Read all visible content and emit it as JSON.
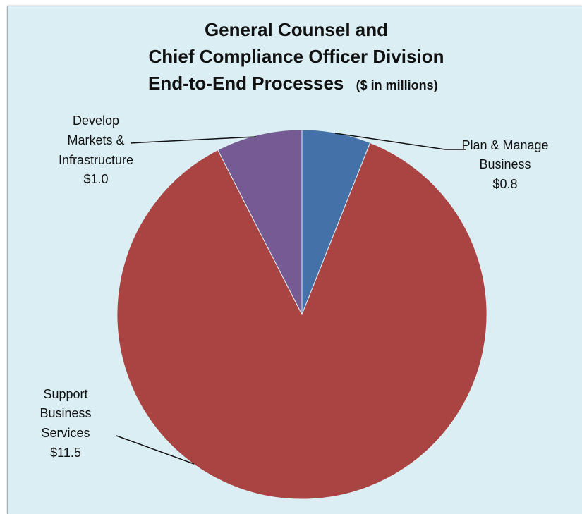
{
  "chart_data": {
    "type": "pie",
    "title_lines": [
      "General Counsel and",
      "Chief Compliance Officer Division",
      "End-to-End Processes"
    ],
    "title_unit": "($ in millions)",
    "start_angle_deg": 0,
    "direction": "clockwise",
    "slices": [
      {
        "label_lines": [
          "Plan & Manage",
          "Business"
        ],
        "value": 0.8,
        "value_label": "$0.8",
        "color": "#4471a7"
      },
      {
        "label_lines": [
          "Support",
          "Business",
          "Services"
        ],
        "value": 11.5,
        "value_label": "$11.5",
        "color": "#a94443"
      },
      {
        "label_lines": [
          "Develop",
          "Markets &",
          "Infrastructure"
        ],
        "value": 1.0,
        "value_label": "$1.0",
        "color": "#765a94"
      }
    ],
    "background_color": "#daeef3"
  }
}
